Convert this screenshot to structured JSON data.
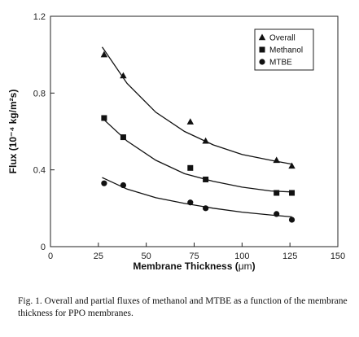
{
  "chart_data": {
    "type": "scatter",
    "xlabel_prefix": "Membrane Thickness (",
    "xlabel_unit": "μm",
    "xlabel_suffix": ")",
    "ylabel": "Flux (10⁻⁴ kg/m²s)",
    "xlim": [
      0,
      150
    ],
    "ylim": [
      0,
      1.2
    ],
    "xticks": [
      0,
      25,
      50,
      75,
      100,
      125,
      150
    ],
    "yticks": [
      0,
      0.4,
      0.8,
      1.2
    ],
    "ytick_labels": [
      "0",
      "0.4",
      "0.8",
      "1.2"
    ],
    "grid": false,
    "legend_position": "top-right",
    "series": [
      {
        "name": "Overall",
        "marker": "triangle",
        "x": [
          28,
          38,
          73,
          81,
          118,
          126
        ],
        "y": [
          1.0,
          0.89,
          0.65,
          0.55,
          0.45,
          0.42
        ],
        "fit": {
          "x": [
            27,
            40,
            55,
            70,
            85,
            100,
            115,
            126
          ],
          "y": [
            1.04,
            0.85,
            0.7,
            0.6,
            0.53,
            0.48,
            0.45,
            0.43
          ]
        }
      },
      {
        "name": "Methanol",
        "marker": "square",
        "x": [
          28,
          38,
          73,
          81,
          118,
          126
        ],
        "y": [
          0.67,
          0.57,
          0.41,
          0.35,
          0.28,
          0.28
        ],
        "fit": {
          "x": [
            27,
            40,
            55,
            70,
            85,
            100,
            115,
            126
          ],
          "y": [
            0.67,
            0.55,
            0.45,
            0.38,
            0.34,
            0.31,
            0.29,
            0.285
          ]
        }
      },
      {
        "name": "MTBE",
        "marker": "circle",
        "x": [
          28,
          38,
          73,
          81,
          118,
          126
        ],
        "y": [
          0.33,
          0.32,
          0.23,
          0.2,
          0.17,
          0.14
        ],
        "fit": {
          "x": [
            27,
            40,
            55,
            70,
            85,
            100,
            115,
            126
          ],
          "y": [
            0.36,
            0.3,
            0.255,
            0.225,
            0.2,
            0.18,
            0.165,
            0.155
          ]
        }
      }
    ]
  },
  "caption": "Fig. 1. Overall and partial fluxes of methanol and MTBE as a function of the membrane thickness for PPO membranes."
}
